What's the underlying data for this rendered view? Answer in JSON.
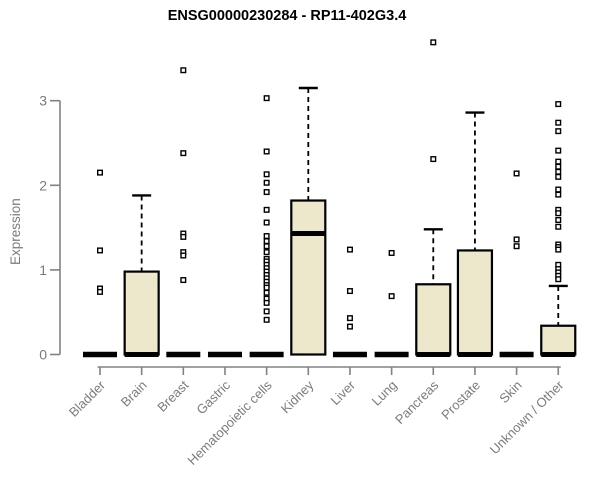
{
  "colors": {
    "box_fill": "#EDE7CB",
    "box_stroke": "#000000",
    "whisker": "#000000",
    "outlier_stroke": "#000000",
    "outlier_fill": "#FFFFFF",
    "axis_line": "#828282",
    "axis_text": "#7B7B7B",
    "title_text": "#000000",
    "background": "#FFFFFF"
  },
  "chart_data": {
    "type": "boxplot",
    "title": "ENSG00000230284 - RP11-402G3.4",
    "xlabel": "",
    "ylabel": "Expression",
    "ylim": [
      0,
      3.75
    ],
    "yticks": [
      0,
      1,
      2,
      3
    ],
    "grid": false,
    "legend": "none",
    "categories": [
      "Bladder",
      "Brain",
      "Breast",
      "Gastric",
      "Hematopoietic cells",
      "Kidney",
      "Liver",
      "Lung",
      "Pancreas",
      "Prostate",
      "Skin",
      "Unknown / Other"
    ],
    "series": [
      {
        "label": "Bladder",
        "median": 0,
        "q1": 0,
        "q3": 0,
        "whisker_low": 0,
        "whisker_high": 0,
        "outliers": [
          2.15,
          1.23,
          0.78,
          0.74
        ]
      },
      {
        "label": "Brain",
        "median": 0,
        "q1": 0,
        "q3": 0.98,
        "whisker_low": 0,
        "whisker_high": 1.88,
        "outliers": []
      },
      {
        "label": "Breast",
        "median": 0,
        "q1": 0,
        "q3": 0,
        "whisker_low": 0,
        "whisker_high": 0,
        "outliers": [
          3.36,
          2.38,
          1.43,
          1.39,
          1.21,
          1.17,
          0.88
        ]
      },
      {
        "label": "Gastric",
        "median": 0,
        "q1": 0,
        "q3": 0,
        "whisker_low": 0,
        "whisker_high": 0,
        "outliers": []
      },
      {
        "label": "Hematopoietic cells",
        "median": 0,
        "q1": 0,
        "q3": 0,
        "whisker_low": 0,
        "whisker_high": 0,
        "outliers": [
          3.03,
          2.4,
          2.13,
          2.03,
          1.92,
          1.71,
          1.56,
          1.4,
          1.34,
          1.28,
          1.21,
          1.13,
          1.1,
          1.06,
          1.02,
          0.98,
          0.94,
          0.9,
          0.86,
          0.82,
          0.79,
          0.73,
          0.66,
          0.61,
          0.51,
          0.41
        ]
      },
      {
        "label": "Kidney",
        "median": 1.43,
        "q1": 0,
        "q3": 1.82,
        "whisker_low": 0,
        "whisker_high": 3.15,
        "outliers": []
      },
      {
        "label": "Liver",
        "median": 0,
        "q1": 0,
        "q3": 0,
        "whisker_low": 0,
        "whisker_high": 0,
        "outliers": [
          1.24,
          0.75,
          0.43,
          0.33
        ]
      },
      {
        "label": "Lung",
        "median": 0,
        "q1": 0,
        "q3": 0,
        "whisker_low": 0,
        "whisker_high": 0,
        "outliers": [
          1.2,
          0.69
        ]
      },
      {
        "label": "Pancreas",
        "median": 0,
        "q1": 0,
        "q3": 0.83,
        "whisker_low": 0,
        "whisker_high": 1.48,
        "outliers": [
          3.69,
          2.31
        ]
      },
      {
        "label": "Prostate",
        "median": 0,
        "q1": 0,
        "q3": 1.23,
        "whisker_low": 0,
        "whisker_high": 2.86,
        "outliers": []
      },
      {
        "label": "Skin",
        "median": 0,
        "q1": 0,
        "q3": 0,
        "whisker_low": 0,
        "whisker_high": 0,
        "outliers": [
          2.14,
          1.36,
          1.28
        ]
      },
      {
        "label": "Unknown / Other",
        "median": 0,
        "q1": 0,
        "q3": 0.34,
        "whisker_low": 0,
        "whisker_high": 0.81,
        "outliers": [
          2.96,
          2.74,
          2.64,
          2.41,
          2.28,
          2.22,
          2.16,
          2.1,
          1.95,
          1.89,
          1.71,
          1.67,
          1.59,
          1.51,
          1.3,
          1.27,
          1.24,
          1.06,
          1.01,
          0.97,
          0.93,
          0.89
        ]
      }
    ]
  }
}
